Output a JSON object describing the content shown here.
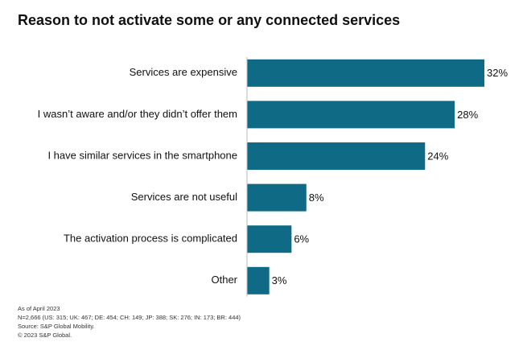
{
  "chart_data": {
    "type": "hbar",
    "title": "Reason to not activate some or any connected services",
    "categories": [
      "Services are expensive",
      "I wasn’t aware and/or they didn’t offer them",
      "I have similar services in the smartphone",
      "Services are not useful",
      "The activation process is complicated",
      "Other"
    ],
    "values": [
      32,
      28,
      24,
      8,
      6,
      3
    ],
    "value_labels": [
      "32%",
      "28%",
      "24%",
      "8%",
      "6%",
      "3%"
    ],
    "color": "#0f6a85",
    "footnotes": [
      "As of April 2023",
      "N=2,666 (US: 315; UK: 467; DE: 454; CH: 149; JP: 388; SK: 276; IN: 173; BR: 444)",
      "Source: S&P Global Mobility.",
      "© 2023 S&P Global."
    ]
  }
}
